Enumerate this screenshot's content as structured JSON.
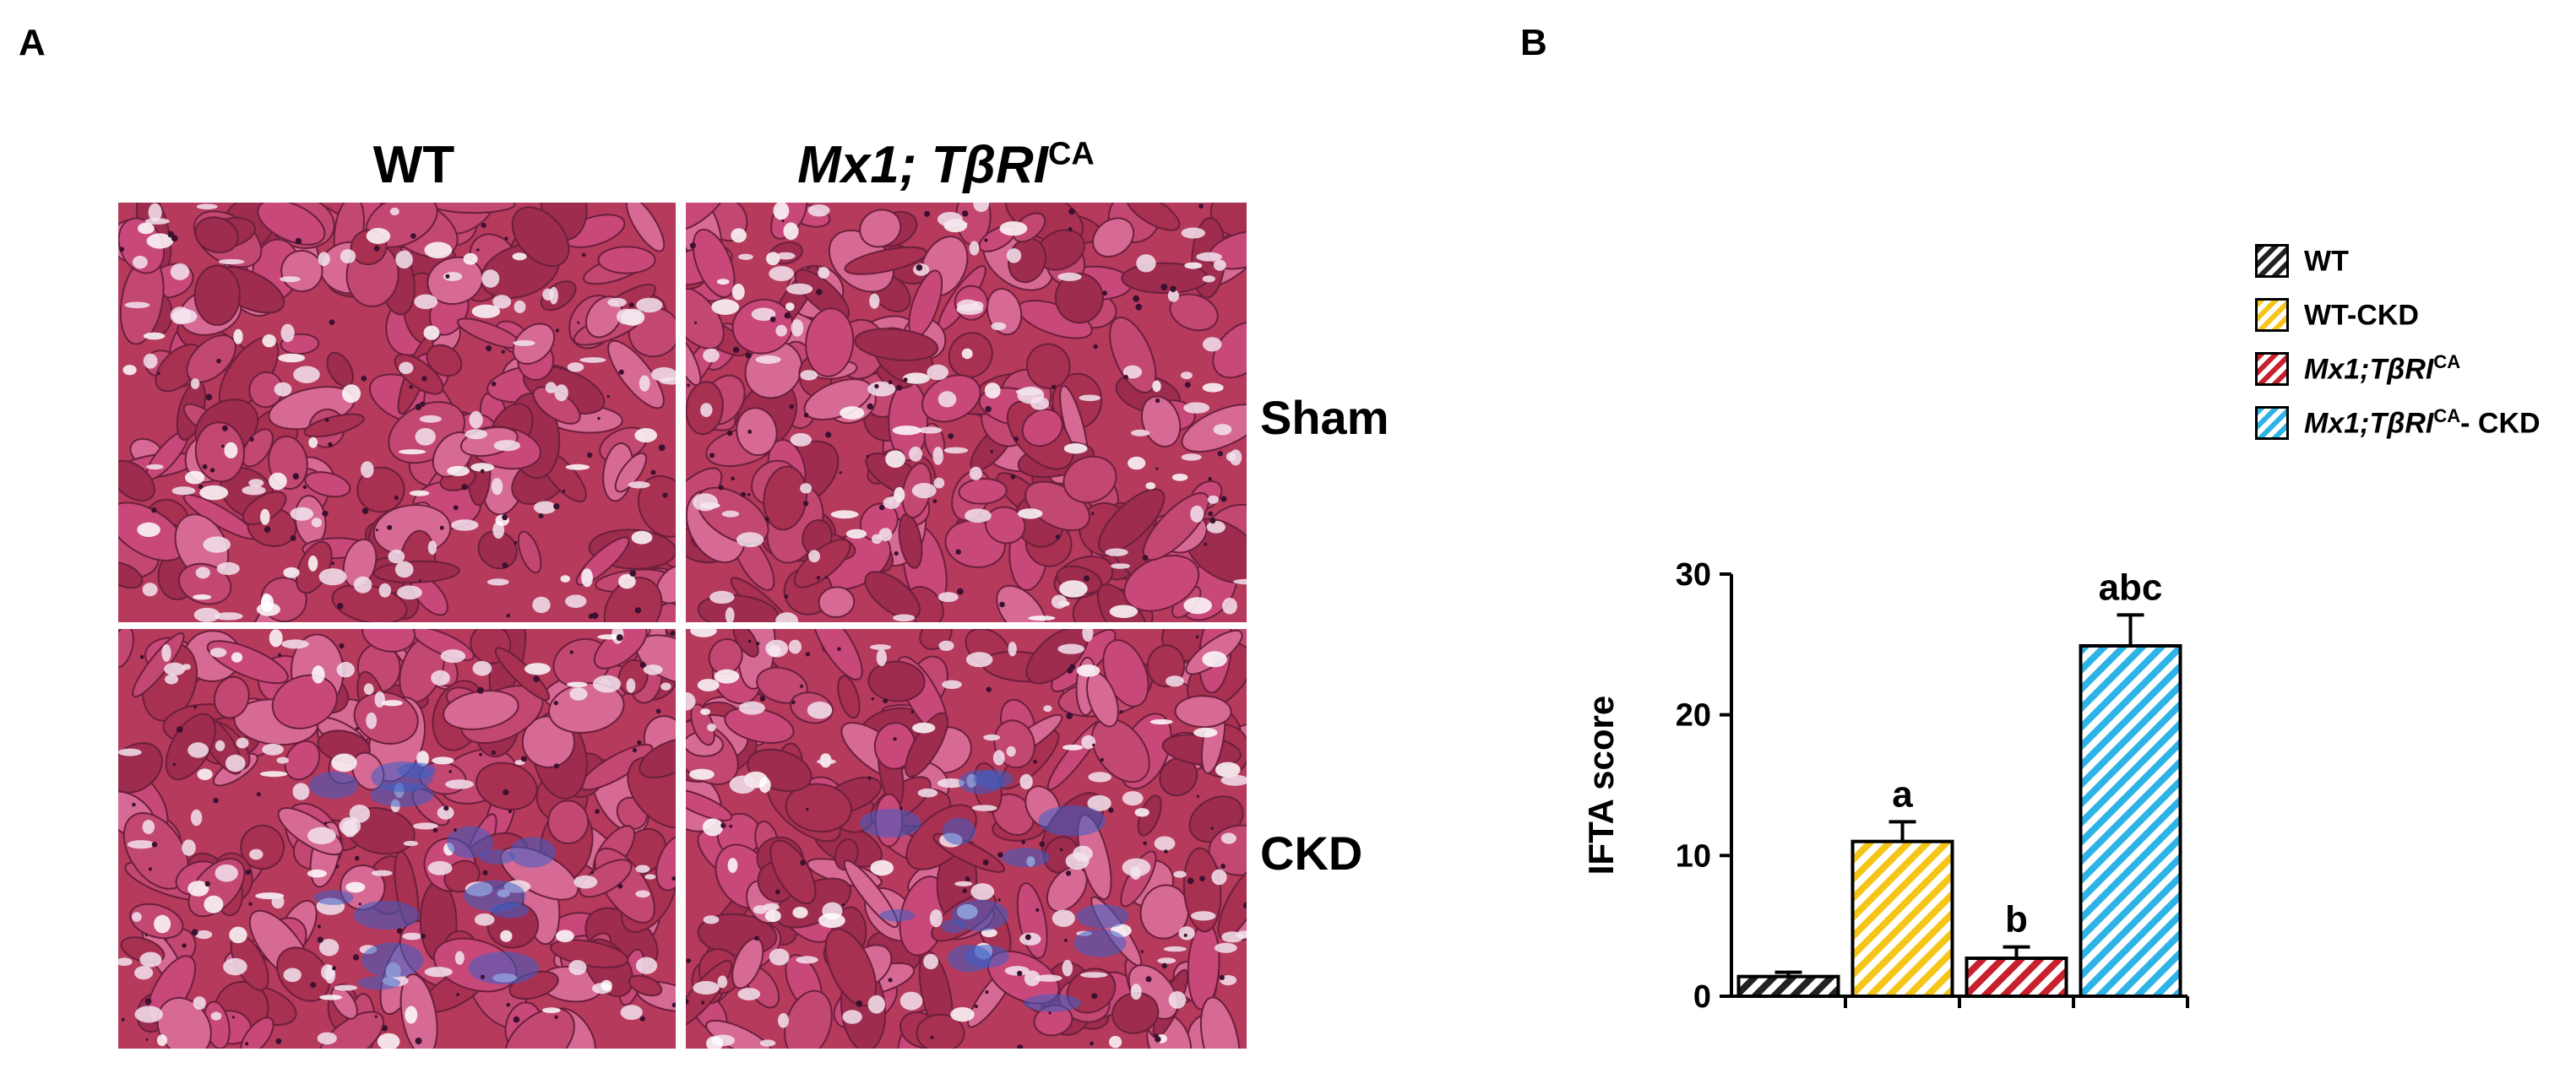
{
  "panel_a": {
    "letter": "A",
    "columns": [
      {
        "label_main": "WT",
        "label_italic": "",
        "label_sup": ""
      },
      {
        "label_main": "",
        "label_italic": "Mx1; TβRI",
        "label_sup": "CA"
      }
    ],
    "rows": [
      "Sham",
      "CKD"
    ]
  },
  "panel_b": {
    "letter": "B",
    "legend": [
      {
        "text": "WT",
        "italic": "",
        "sup": "",
        "suffix": "",
        "color": "#222222"
      },
      {
        "text": "WT-CKD",
        "italic": "",
        "sup": "",
        "suffix": "",
        "color": "#F5C518"
      },
      {
        "text": "",
        "italic": "Mx1;TβRI",
        "sup": "CA",
        "suffix": "",
        "color": "#C8202C"
      },
      {
        "text": "",
        "italic": "Mx1;TβRI",
        "sup": "CA",
        "suffix": "- CKD",
        "color": "#2DB3E6"
      }
    ]
  },
  "chart_data": {
    "type": "bar",
    "categories": [
      "WT",
      "WT-CKD",
      "Mx1;TβRICA",
      "Mx1;TβRICA- CKD"
    ],
    "values": [
      1.4,
      11.0,
      2.7,
      24.9
    ],
    "errors": [
      0.3,
      1.4,
      0.8,
      2.2
    ],
    "annotations": [
      "",
      "a",
      "b",
      "abc"
    ],
    "colors": [
      "#222222",
      "#F5C518",
      "#C8202C",
      "#2DB3E6"
    ],
    "pattern": "diagonal-hatch",
    "ylabel": "IFTA score",
    "ylim": [
      0,
      30
    ],
    "yticks": [
      0,
      10,
      20,
      30
    ],
    "grid": false
  }
}
